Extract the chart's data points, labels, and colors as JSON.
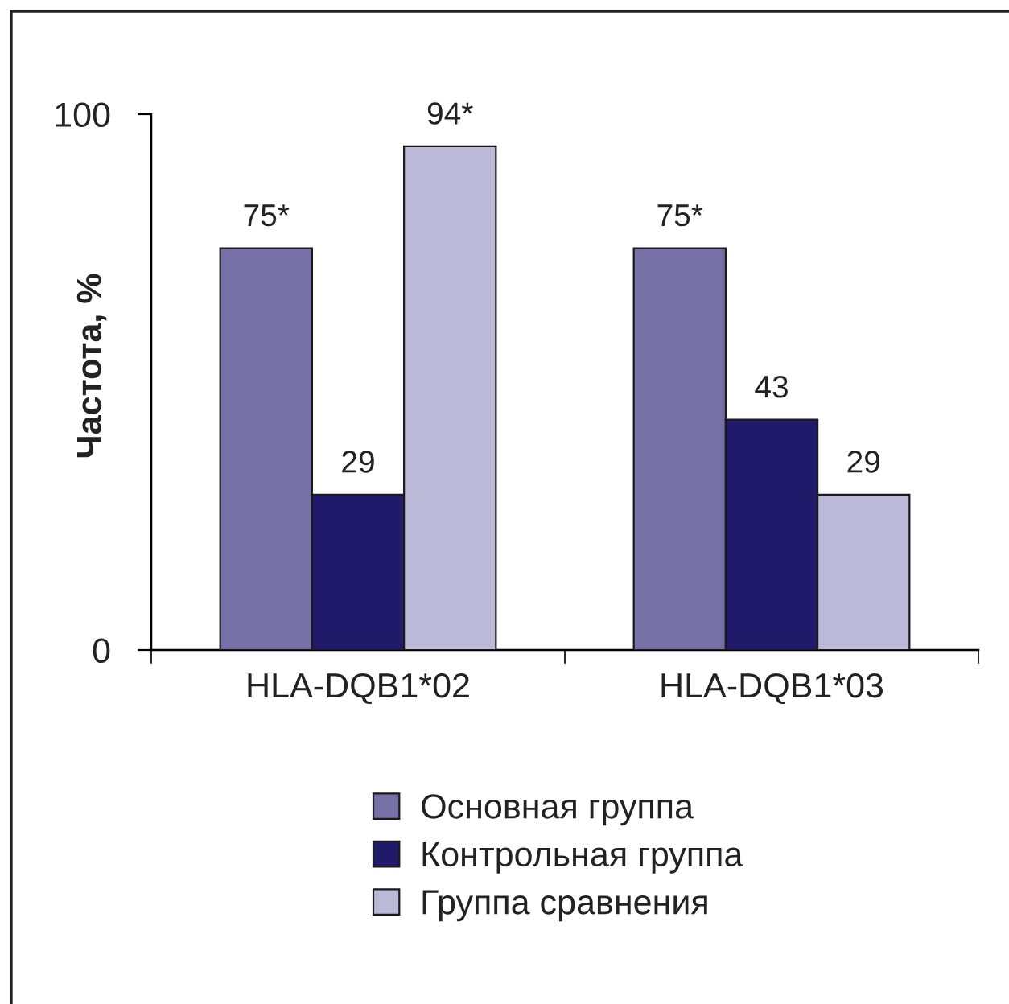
{
  "chart_data": {
    "type": "bar",
    "ylabel": "Частота, %",
    "categories": [
      "HLA-DQB1*02",
      "HLA-DQB1*03"
    ],
    "series": [
      {
        "name": "Основная группа",
        "color": "#7670a6",
        "values": [
          75,
          75
        ],
        "value_labels": [
          "75*",
          "75*"
        ]
      },
      {
        "name": "Контрольная группа",
        "color": "#211a6b",
        "values": [
          29,
          43
        ],
        "value_labels": [
          "29",
          "43"
        ]
      },
      {
        "name": "Группа сравнения",
        "color": "#bbb8d8",
        "values": [
          94,
          29
        ],
        "value_labels": [
          "94*",
          "29"
        ]
      }
    ],
    "ylim": [
      0,
      100
    ],
    "yticks": [
      0,
      100
    ],
    "grid": false,
    "legend": "bottom"
  }
}
